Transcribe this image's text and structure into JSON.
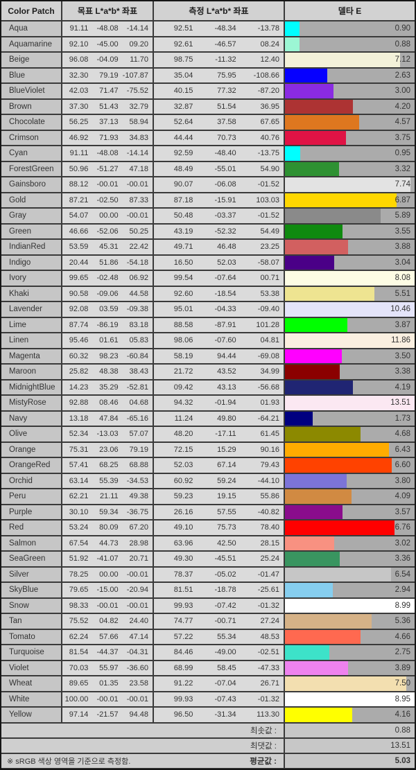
{
  "header": {
    "color_patch": "Color Patch",
    "target_lab": "목표 L*a*b* 좌표",
    "measured_lab": "측정 L*a*b* 좌표",
    "delta_e": "델타 E"
  },
  "bar_scale_max": 8,
  "rows": [
    {
      "name": "Aqua",
      "target": [
        "91.11",
        "-48.08",
        "-14.14"
      ],
      "measured": [
        "92.51",
        "-48.34",
        "-13.78"
      ],
      "delta": "0.90",
      "color": "#00FFFF"
    },
    {
      "name": "Aquamarine",
      "target": [
        "92.10",
        "-45.00",
        "09.20"
      ],
      "measured": [
        "92.61",
        "-46.57",
        "08.24"
      ],
      "delta": "0.88",
      "color": "#9CF6D4"
    },
    {
      "name": "Beige",
      "target": [
        "96.08",
        "-04.09",
        "11.70"
      ],
      "measured": [
        "98.75",
        "-11.32",
        "12.40"
      ],
      "delta": "7.12",
      "color": "#F3F1D9"
    },
    {
      "name": "Blue",
      "target": [
        "32.30",
        "79.19",
        "-107.87"
      ],
      "measured": [
        "35.04",
        "75.95",
        "-108.66"
      ],
      "delta": "2.63",
      "color": "#0600FF"
    },
    {
      "name": "BlueViolet",
      "target": [
        "42.03",
        "71.47",
        "-75.52"
      ],
      "measured": [
        "40.15",
        "77.32",
        "-87.20"
      ],
      "delta": "3.00",
      "color": "#8A2BE2"
    },
    {
      "name": "Brown",
      "target": [
        "37.30",
        "51.43",
        "32.79"
      ],
      "measured": [
        "32.87",
        "51.54",
        "36.95"
      ],
      "delta": "4.20",
      "color": "#AD3333"
    },
    {
      "name": "Chocolate",
      "target": [
        "56.25",
        "37.13",
        "58.94"
      ],
      "measured": [
        "52.64",
        "37.58",
        "67.65"
      ],
      "delta": "4.57",
      "color": "#DE771F"
    },
    {
      "name": "Crimson",
      "target": [
        "46.92",
        "71.93",
        "34.83"
      ],
      "measured": [
        "44.44",
        "70.73",
        "40.76"
      ],
      "delta": "3.75",
      "color": "#E01345"
    },
    {
      "name": "Cyan",
      "target": [
        "91.11",
        "-48.08",
        "-14.14"
      ],
      "measured": [
        "92.59",
        "-48.40",
        "-13.75"
      ],
      "delta": "0.95",
      "color": "#00FFFF"
    },
    {
      "name": "ForestGreen",
      "target": [
        "50.96",
        "-51.27",
        "47.18"
      ],
      "measured": [
        "48.49",
        "-55.01",
        "54.90"
      ],
      "delta": "3.32",
      "color": "#2E9132"
    },
    {
      "name": "Gainsboro",
      "target": [
        "88.12",
        "-00.01",
        "-00.01"
      ],
      "measured": [
        "90.07",
        "-06.08",
        "-01.52"
      ],
      "delta": "7.74",
      "color": "#E3E3E3"
    },
    {
      "name": "Gold",
      "target": [
        "87.21",
        "-02.50",
        "87.33"
      ],
      "measured": [
        "87.18",
        "-15.91",
        "103.03"
      ],
      "delta": "6.87",
      "color": "#FFD700"
    },
    {
      "name": "Gray",
      "target": [
        "54.07",
        "00.00",
        "-00.01"
      ],
      "measured": [
        "50.48",
        "-03.37",
        "-01.52"
      ],
      "delta": "5.89",
      "color": "#8A8A8A"
    },
    {
      "name": "Green",
      "target": [
        "46.66",
        "-52.06",
        "50.25"
      ],
      "measured": [
        "43.19",
        "-52.32",
        "54.49"
      ],
      "delta": "3.55",
      "color": "#0F8A0F"
    },
    {
      "name": "IndianRed",
      "target": [
        "53.59",
        "45.31",
        "22.42"
      ],
      "measured": [
        "49.71",
        "46.48",
        "23.25"
      ],
      "delta": "3.88",
      "color": "#D26060"
    },
    {
      "name": "Indigo",
      "target": [
        "20.44",
        "51.86",
        "-54.18"
      ],
      "measured": [
        "16.50",
        "52.03",
        "-58.07"
      ],
      "delta": "3.04",
      "color": "#4A0087"
    },
    {
      "name": "Ivory",
      "target": [
        "99.65",
        "-02.48",
        "06.92"
      ],
      "measured": [
        "99.54",
        "-07.64",
        "00.71"
      ],
      "delta": "8.08",
      "color": "#FDFCE4"
    },
    {
      "name": "Khaki",
      "target": [
        "90.58",
        "-09.06",
        "44.58"
      ],
      "measured": [
        "92.60",
        "-18.54",
        "53.38"
      ],
      "delta": "5.51",
      "color": "#EEE491"
    },
    {
      "name": "Lavender",
      "target": [
        "92.08",
        "03.59",
        "-09.38"
      ],
      "measured": [
        "95.01",
        "-04.33",
        "-09.40"
      ],
      "delta": "10.46",
      "color": "#E4E4F9"
    },
    {
      "name": "Lime",
      "target": [
        "87.74",
        "-86.19",
        "83.18"
      ],
      "measured": [
        "88.58",
        "-87.91",
        "101.28"
      ],
      "delta": "3.87",
      "color": "#00FF00"
    },
    {
      "name": "Linen",
      "target": [
        "95.46",
        "01.61",
        "05.83"
      ],
      "measured": [
        "98.06",
        "-07.60",
        "04.81"
      ],
      "delta": "11.86",
      "color": "#FAEFE0"
    },
    {
      "name": "Magenta",
      "target": [
        "60.32",
        "98.23",
        "-60.84"
      ],
      "measured": [
        "58.19",
        "94.44",
        "-69.08"
      ],
      "delta": "3.50",
      "color": "#FF00FF"
    },
    {
      "name": "Maroon",
      "target": [
        "25.82",
        "48.38",
        "38.43"
      ],
      "measured": [
        "21.72",
        "43.52",
        "34.99"
      ],
      "delta": "3.38",
      "color": "#8B0000"
    },
    {
      "name": "MidnightBlue",
      "target": [
        "14.23",
        "35.29",
        "-52.81"
      ],
      "measured": [
        "09.42",
        "43.13",
        "-56.68"
      ],
      "delta": "4.19",
      "color": "#202573"
    },
    {
      "name": "MistyRose",
      "target": [
        "92.88",
        "08.46",
        "04.68"
      ],
      "measured": [
        "94.32",
        "-01.94",
        "01.93"
      ],
      "delta": "13.51",
      "color": "#FBE8F2"
    },
    {
      "name": "Navy",
      "target": [
        "13.18",
        "47.84",
        "-65.16"
      ],
      "measured": [
        "11.24",
        "49.80",
        "-64.21"
      ],
      "delta": "1.73",
      "color": "#000080"
    },
    {
      "name": "Olive",
      "target": [
        "52.34",
        "-13.03",
        "57.07"
      ],
      "measured": [
        "48.20",
        "-17.11",
        "61.45"
      ],
      "delta": "4.68",
      "color": "#8C8900"
    },
    {
      "name": "Orange",
      "target": [
        "75.31",
        "23.06",
        "79.19"
      ],
      "measured": [
        "72.15",
        "15.29",
        "90.16"
      ],
      "delta": "6.43",
      "color": "#FFAC00"
    },
    {
      "name": "OrangeRed",
      "target": [
        "57.41",
        "68.25",
        "68.88"
      ],
      "measured": [
        "52.03",
        "67.14",
        "79.43"
      ],
      "delta": "6.60",
      "color": "#FF4200"
    },
    {
      "name": "Orchid",
      "target": [
        "63.14",
        "55.39",
        "-34.53"
      ],
      "measured": [
        "60.92",
        "59.24",
        "-44.10"
      ],
      "delta": "3.80",
      "color": "#7C74D8"
    },
    {
      "name": "Peru",
      "target": [
        "62.21",
        "21.11",
        "49.38"
      ],
      "measured": [
        "59.23",
        "19.15",
        "55.86"
      ],
      "delta": "4.09",
      "color": "#D18A42"
    },
    {
      "name": "Purple",
      "target": [
        "30.10",
        "59.34",
        "-36.75"
      ],
      "measured": [
        "26.16",
        "57.55",
        "-40.82"
      ],
      "delta": "3.57",
      "color": "#8A0C8C"
    },
    {
      "name": "Red",
      "target": [
        "53.24",
        "80.09",
        "67.20"
      ],
      "measured": [
        "49.10",
        "75.73",
        "78.40"
      ],
      "delta": "6.76",
      "color": "#FF0000"
    },
    {
      "name": "Salmon",
      "target": [
        "67.54",
        "44.73",
        "28.98"
      ],
      "measured": [
        "63.96",
        "42.50",
        "28.15"
      ],
      "delta": "3.02",
      "color": "#F89181"
    },
    {
      "name": "SeaGreen",
      "target": [
        "51.92",
        "-41.07",
        "20.71"
      ],
      "measured": [
        "49.30",
        "-45.51",
        "25.24"
      ],
      "delta": "3.36",
      "color": "#399560"
    },
    {
      "name": "Silver",
      "target": [
        "78.25",
        "00.00",
        "-00.01"
      ],
      "measured": [
        "78.37",
        "-05.02",
        "-01.47"
      ],
      "delta": "6.54",
      "color": "#C6C6C6"
    },
    {
      "name": "SkyBlue",
      "target": [
        "79.65",
        "-15.00",
        "-20.94"
      ],
      "measured": [
        "81.51",
        "-18.78",
        "-25.61"
      ],
      "delta": "2.94",
      "color": "#86CEEF"
    },
    {
      "name": "Snow",
      "target": [
        "98.33",
        "-00.01",
        "-00.01"
      ],
      "measured": [
        "99.93",
        "-07.42",
        "-01.32"
      ],
      "delta": "8.99",
      "color": "#FFFFFF"
    },
    {
      "name": "Tan",
      "target": [
        "75.52",
        "04.82",
        "24.40"
      ],
      "measured": [
        "74.77",
        "-00.71",
        "27.24"
      ],
      "delta": "5.36",
      "color": "#D6B287"
    },
    {
      "name": "Tomato",
      "target": [
        "62.24",
        "57.66",
        "47.14"
      ],
      "measured": [
        "57.22",
        "55.34",
        "48.53"
      ],
      "delta": "4.66",
      "color": "#FF6950"
    },
    {
      "name": "Turquoise",
      "target": [
        "81.54",
        "-44.37",
        "-04.31"
      ],
      "measured": [
        "84.46",
        "-49.00",
        "-02.51"
      ],
      "delta": "2.75",
      "color": "#3DE2C9"
    },
    {
      "name": "Violet",
      "target": [
        "70.03",
        "55.97",
        "-36.60"
      ],
      "measured": [
        "68.99",
        "58.45",
        "-47.33"
      ],
      "delta": "3.89",
      "color": "#EE82EE"
    },
    {
      "name": "Wheat",
      "target": [
        "89.65",
        "01.35",
        "23.58"
      ],
      "measured": [
        "91.22",
        "-07.04",
        "26.71"
      ],
      "delta": "7.50",
      "color": "#F3DFB0"
    },
    {
      "name": "White",
      "target": [
        "100.00",
        "-00.01",
        "-00.01"
      ],
      "measured": [
        "99.93",
        "-07.43",
        "-01.32"
      ],
      "delta": "8.95",
      "color": "#FFFFFF"
    },
    {
      "name": "Yellow",
      "target": [
        "97.14",
        "-21.57",
        "94.48"
      ],
      "measured": [
        "96.50",
        "-31.34",
        "113.30"
      ],
      "delta": "4.16",
      "color": "#FFFF00"
    }
  ],
  "summary": [
    {
      "label": "최솟값 :",
      "value": "0.88"
    },
    {
      "label": "최댓값 :",
      "value": "13.51"
    },
    {
      "label": "평균값 :",
      "value": "5.03"
    }
  ],
  "footnote": "※ sRGB 색상 영역을 기준으로 측정함.",
  "theme": {
    "grid": "#3a3a3a",
    "outer": "#161616",
    "header-bg": "#d2d2d2",
    "name-bg": "#c6c6c6",
    "num-bg": "#dbdbdb",
    "delta-bg": "#ababab",
    "sum-left-bg": "#cfcfcf",
    "sum-delta-bg": "#c7c7c7",
    "text": "#333333"
  }
}
